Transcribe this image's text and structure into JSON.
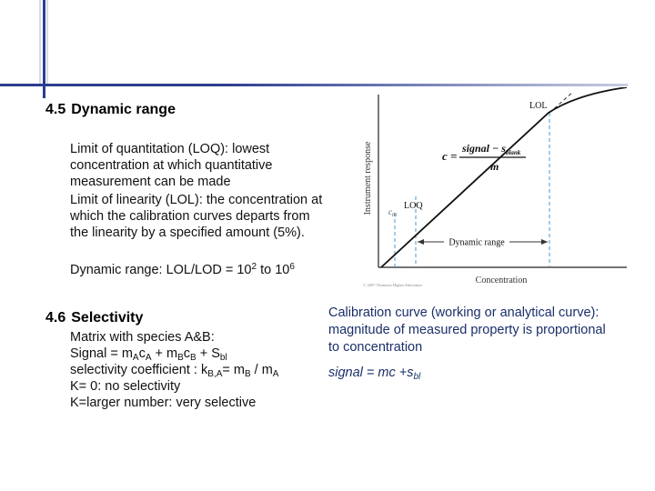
{
  "section_45": {
    "number": "4.5",
    "title": "Dynamic range",
    "loq_lines": [
      "Limit of quantitation (LOQ): lowest",
      "concentration at which quantitative",
      "measurement can be made"
    ],
    "lol_lines": [
      "Limit of linearity (LOL): the concentration at",
      "which the calibration curves departs from",
      "the linearity by a specified amount (5%)."
    ],
    "dynamic_range": {
      "prefix": "Dynamic range: LOL/LOD = 10",
      "exp1": "2",
      "mid": " to 10",
      "exp2": "6"
    }
  },
  "section_46": {
    "number": "4.6",
    "title": "Selectivity",
    "intro": "Matrix with species A&B:",
    "signal": {
      "pre": "Signal = m",
      "s1": "A",
      "c": "c",
      "s2": "A",
      "plus": " + m",
      "s3": "B",
      "c2": "c",
      "s4": "B",
      "plus2": " + S",
      "s5": "bl"
    },
    "coeff": {
      "pre": "selectivity coefficient : k",
      "s1": "B,A",
      "eq": "= m",
      "s2": "B",
      "div": " / m",
      "s3": "A"
    },
    "k0": "K= 0: no selectivity",
    "klarge": "K=larger number: very selective"
  },
  "calibration": {
    "lines": [
      "Calibration curve (working or analytical curve):",
      "magnitude of measured property is proportional",
      "to concentration"
    ],
    "eq_pre": "signal = mc +s",
    "eq_sub": "bl"
  },
  "figure": {
    "y_axis_label": "Instrument response",
    "x_axis_label": "Concentration",
    "lol_label": "LOL",
    "loq_label": "LOQ",
    "cm_label": "c",
    "cm_sub": "m",
    "dynamic_range_label": "Dynamic range",
    "equation_lhs": "c =",
    "equation_num": "signal − s",
    "equation_num_sub": "blank",
    "equation_den": "m",
    "copyright": "© 2007 Thomson Higher Education"
  },
  "colors": {
    "accent_bar": "#2b3d8f",
    "body_text": "#111111",
    "right_text": "#1a2f6a",
    "dashed_blue": "#4a9ad0"
  }
}
